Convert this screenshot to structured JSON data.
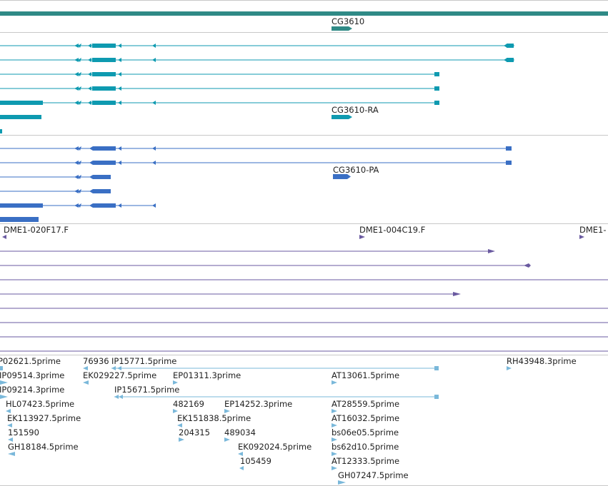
{
  "colors": {
    "divider": "#c8c8c8",
    "gene": "#2f8a86",
    "transcript": "#0e9ab0",
    "protein": "#3a6fc4",
    "clone": "#6a5aa0",
    "est": "#7ab8da"
  },
  "tracks": {
    "gene": {
      "label": "CG3610"
    },
    "transcripts": {
      "label": "CG3610-RA"
    },
    "proteins": {
      "label": "CG3610-PA"
    },
    "clones": {
      "labels": [
        "DME1-020F17.F",
        "DME1-004C19.F",
        "DME1-"
      ]
    },
    "ests": {
      "labels": [
        "P02621.5prime",
        "76936",
        "IP15771.5prime",
        "RH43948.3prime",
        "IP09514.3prime",
        "EK029227.5prime",
        "EP01311.3prime",
        "AT13061.5prime",
        "IP09214.3prime",
        "IP15671.5prime",
        "HL07423.5prime",
        "482169",
        "EP14252.3prime",
        "AT28559.5prime",
        "EK113927.5prime",
        "EK151838.5prime",
        "AT16032.5prime",
        "151590",
        "204315",
        "489034",
        "bs06e05.5prime",
        "GH18184.5prime",
        "EK092024.5prime",
        "bs62d10.5prime",
        "105459",
        "AT12333.5prime",
        "GH07247.5prime"
      ]
    }
  }
}
